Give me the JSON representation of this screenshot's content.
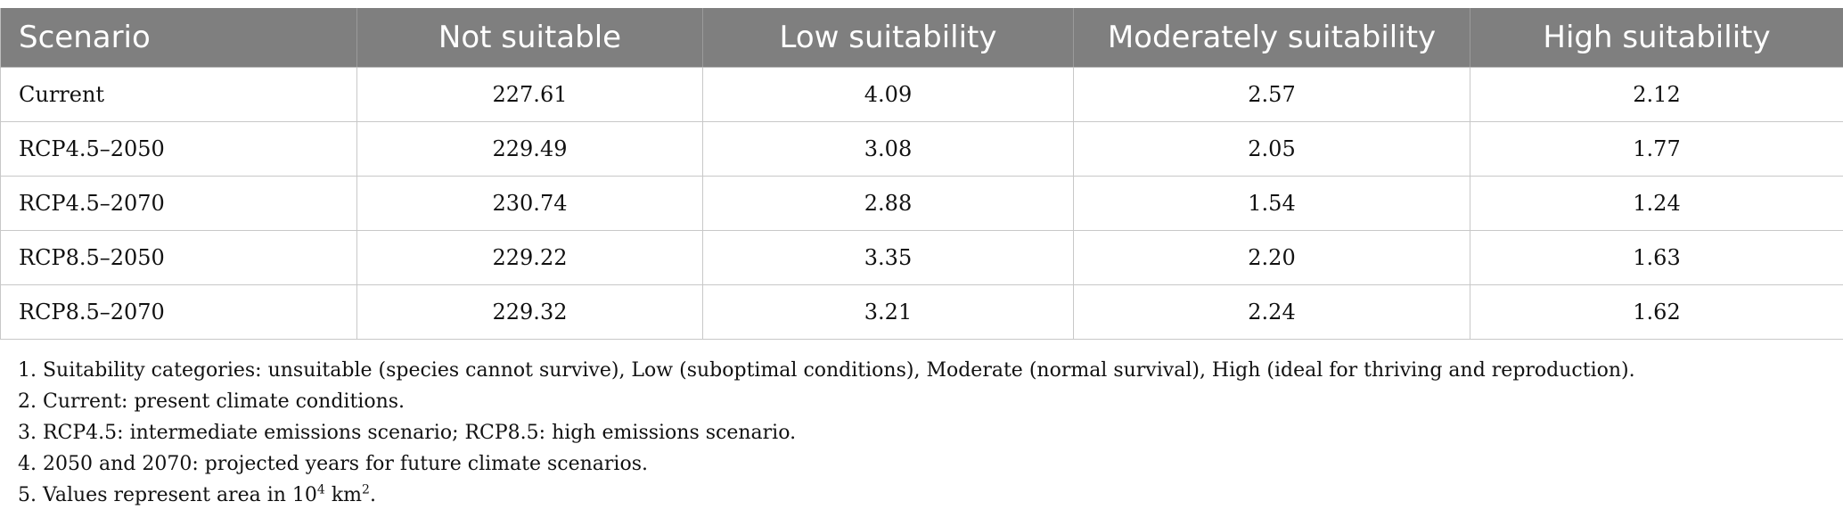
{
  "table": {
    "headers": [
      "Scenario",
      "Not suitable",
      "Low suitability",
      "Moderately suitability",
      "High suitability"
    ],
    "rows": [
      [
        "Current",
        "227.61",
        "4.09",
        "2.57",
        "2.12"
      ],
      [
        "RCP4.5–2050",
        "229.49",
        "3.08",
        "2.05",
        "1.77"
      ],
      [
        "RCP4.5–2070",
        "230.74",
        "2.88",
        "1.54",
        "1.24"
      ],
      [
        "RCP8.5–2050",
        "229.22",
        "3.35",
        "2.20",
        "1.63"
      ],
      [
        "RCP8.5–2070",
        "229.32",
        "3.21",
        "2.24",
        "1.62"
      ]
    ]
  },
  "notes": {
    "n1": "1. Suitability categories: unsuitable (species cannot survive), Low (suboptimal conditions), Moderate (normal survival), High (ideal for thriving and reproduction).",
    "n2": "2. Current: present climate conditions.",
    "n3": "3. RCP4.5: intermediate emissions scenario; RCP8.5: high emissions scenario.",
    "n4": "4. 2050 and 2070: projected years for future climate scenarios.",
    "n5_prefix": "5. Values represent area in 10",
    "n5_exp1": "4",
    "n5_mid": " km",
    "n5_exp2": "2",
    "n5_suffix": "."
  }
}
